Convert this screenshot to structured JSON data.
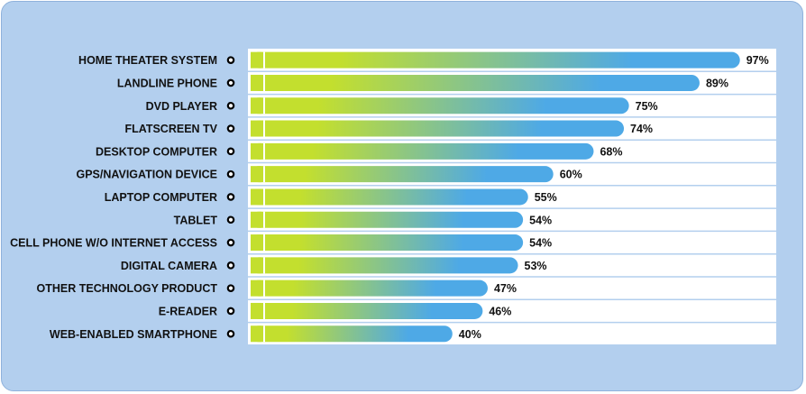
{
  "chart_data": {
    "type": "bar",
    "orientation": "horizontal",
    "categories": [
      "HOME THEATER SYSTEM",
      "LANDLINE PHONE",
      "DVD PLAYER",
      "FLATSCREEN TV",
      "DESKTOP COMPUTER",
      "GPS/NAVIGATION DEVICE",
      "LAPTOP COMPUTER",
      "TABLET",
      "CELL PHONE W/O INTERNET ACCESS",
      "DIGITAL CAMERA",
      "OTHER TECHNOLOGY PRODUCT",
      "E-READER",
      "WEB-ENABLED SMARTPHONE"
    ],
    "values": [
      97,
      89,
      75,
      74,
      68,
      60,
      55,
      54,
      54,
      53,
      47,
      46,
      40
    ],
    "value_labels": [
      "97%",
      "89%",
      "75%",
      "74%",
      "68%",
      "60%",
      "55%",
      "54%",
      "54%",
      "53%",
      "47%",
      "46%",
      "40%"
    ],
    "unit": "%",
    "xlim": [
      0,
      100
    ],
    "legend": "none",
    "grid": false,
    "colors": {
      "background": "#b3cfee",
      "panel": "#ffffff",
      "bar_start": "#c3df2e",
      "bar_end": "#4ea9e6",
      "separator": "#b3cfee"
    }
  }
}
